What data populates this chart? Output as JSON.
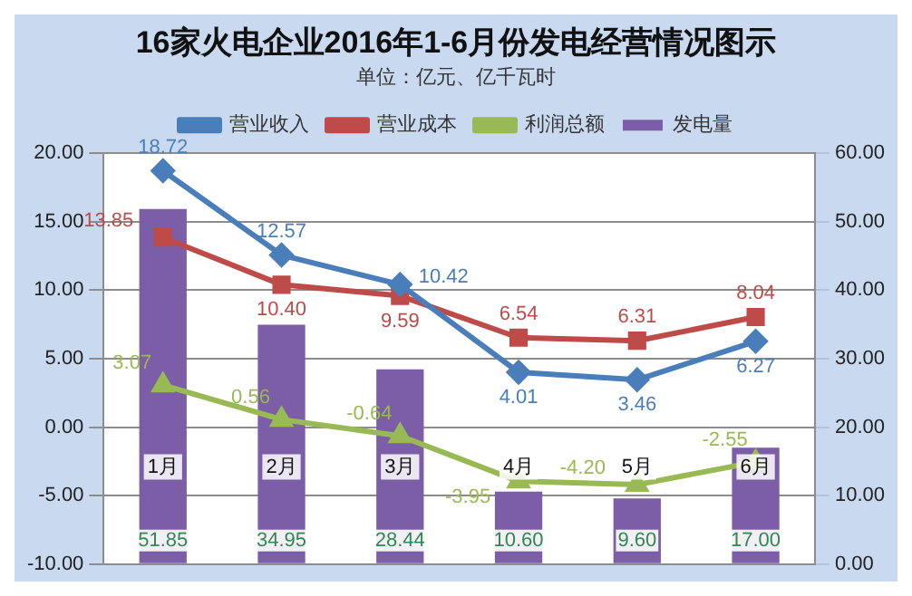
{
  "chart_data": {
    "type": "bar",
    "title": "16家火电企业2016年1-6月份发电经营情况图示",
    "subtitle": "单位：亿元、亿千瓦时",
    "categories": [
      "1月",
      "2月",
      "3月",
      "4月",
      "5月",
      "6月"
    ],
    "series": [
      {
        "name": "发电量",
        "axis": "y2",
        "color": "#7b5ea7",
        "values": [
          51.85,
          34.95,
          28.44,
          10.6,
          9.6,
          17.0
        ],
        "value_labels": [
          "51.85",
          "34.95",
          "28.44",
          "10.60",
          "9.60",
          "17.00"
        ]
      },
      {
        "name": "营业收入",
        "type": "line",
        "marker": "diamond",
        "color": "#4a7ebb",
        "values": [
          18.72,
          12.57,
          10.42,
          4.01,
          3.46,
          6.27
        ],
        "value_labels": [
          "18.72",
          "12.57",
          "10.42",
          "4.01",
          "3.46",
          "6.27"
        ]
      },
      {
        "name": "营业成本",
        "type": "line",
        "marker": "square",
        "color": "#be4b48",
        "values": [
          13.85,
          10.4,
          9.59,
          6.54,
          6.31,
          8.04
        ],
        "value_labels": [
          "13.85",
          "10.40",
          "9.59",
          "6.54",
          "6.31",
          "8.04"
        ]
      },
      {
        "name": "利润总额",
        "type": "line",
        "marker": "triangle",
        "color": "#98b954",
        "values": [
          3.07,
          0.56,
          -0.64,
          -3.95,
          -4.2,
          -2.55
        ],
        "value_labels": [
          "3.07",
          "0.56",
          "-0.64",
          "-3.95",
          "-4.20",
          "-2.55"
        ]
      }
    ],
    "ylim": [
      -10,
      20
    ],
    "yticks": [
      {
        "value": -10,
        "label": "-10.00"
      },
      {
        "value": -5,
        "label": "-5.00"
      },
      {
        "value": 0,
        "label": "0.00"
      },
      {
        "value": 5,
        "label": "5.00"
      },
      {
        "value": 10,
        "label": "10.00"
      },
      {
        "value": 15,
        "label": "15.00"
      },
      {
        "value": 20,
        "label": "20.00"
      }
    ],
    "y2lim": [
      0,
      60
    ],
    "y2ticks": [
      {
        "value": 0,
        "label": "0.00"
      },
      {
        "value": 10,
        "label": "10.00"
      },
      {
        "value": 20,
        "label": "20.00"
      },
      {
        "value": 30,
        "label": "30.00"
      },
      {
        "value": 40,
        "label": "40.00"
      },
      {
        "value": 50,
        "label": "50.00"
      },
      {
        "value": 60,
        "label": "60.00"
      }
    ],
    "grid": "y",
    "legend": "top"
  }
}
